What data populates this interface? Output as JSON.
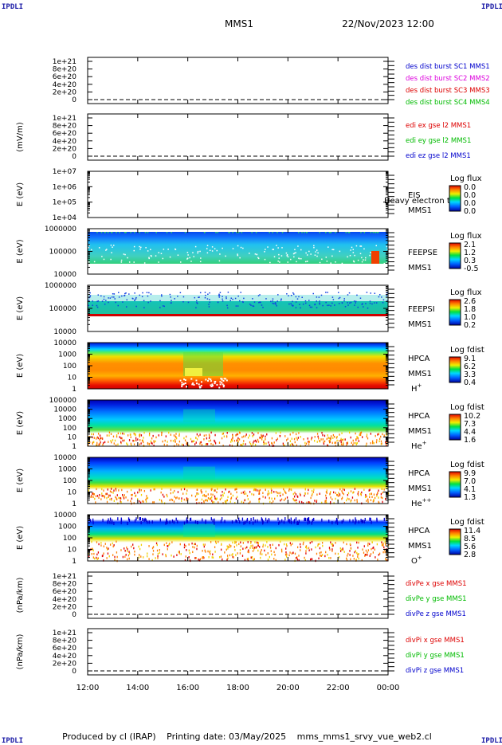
{
  "header": {
    "title": "MMS1",
    "datetime": "22/Nov/2023 12:00"
  },
  "corners": {
    "label": "IPDLI"
  },
  "footer": {
    "produced": "Produced by cl (IRAP)",
    "printing": "Printing date: 03/May/2025",
    "script": "mms_mms1_srvy_vue_web2.cl"
  },
  "x_axis": {
    "ticks": [
      "12:00",
      "14:00",
      "16:00",
      "18:00",
      "20:00",
      "22:00",
      "00:00"
    ]
  },
  "chart_data": [
    {
      "type": "line",
      "ylabel": "",
      "yticks": [
        "1e+21",
        "8e+20",
        "6e+20",
        "4e+20",
        "2e+20",
        "0"
      ],
      "legend": [
        {
          "text": "des dist burst SC1 MMS1",
          "color": "#0000cc"
        },
        {
          "text": "des dist burst SC2 MMS2",
          "color": "#dd00dd"
        },
        {
          "text": "des dist burst SC3 MMS3",
          "color": "#dd0000"
        },
        {
          "text": "des dist burst SC4 MMS4",
          "color": "#00bb00"
        }
      ],
      "series": []
    },
    {
      "type": "line",
      "ylabel": "(mV/m)",
      "yticks": [
        "1e+21",
        "8e+20",
        "6e+20",
        "4e+20",
        "2e+20",
        "0"
      ],
      "legend": [
        {
          "text": "edi ex gse l2 MMS1",
          "color": "#dd0000"
        },
        {
          "text": "edi ey gse l2 MMS1",
          "color": "#00bb00"
        },
        {
          "text": "edi ez gse l2 MMS1",
          "color": "#0000cc"
        }
      ],
      "series": []
    },
    {
      "type": "heatmap",
      "ylabel": "E (eV)",
      "yticks": [
        "1e+07",
        "1e+06",
        "1e+05",
        "1e+04"
      ],
      "instrument": [
        "EIS",
        "MMS1"
      ],
      "overlay_text": "Heavy electron to",
      "colorbar": {
        "title": "Log flux",
        "ticks": [
          "0.0",
          "0.0",
          "0.0",
          "0.0"
        ]
      }
    },
    {
      "type": "heatmap",
      "ylabel": "E (eV)",
      "yticks": [
        "1000000",
        "100000",
        "10000"
      ],
      "instrument": [
        "FEEPSE",
        "MMS1"
      ],
      "colorbar": {
        "title": "Log flux",
        "ticks": [
          "2.1",
          "1.2",
          "0.3",
          "-0.5"
        ]
      }
    },
    {
      "type": "heatmap",
      "ylabel": "E (eV)",
      "yticks": [
        "1000000",
        "100000",
        "10000"
      ],
      "instrument": [
        "FEEPSI",
        "MMS1"
      ],
      "colorbar": {
        "title": "Log flux",
        "ticks": [
          "2.6",
          "1.8",
          "1.0",
          "0.2"
        ]
      }
    },
    {
      "type": "heatmap",
      "ylabel": "E (eV)",
      "yticks": [
        "10000",
        "1000",
        "100",
        "10",
        "1"
      ],
      "instrument": [
        "HPCA",
        "MMS1"
      ],
      "species": "H",
      "charge": "+",
      "colorbar": {
        "title": "Log fdist",
        "ticks": [
          "9.1",
          "6.2",
          "3.3",
          "0.4"
        ]
      }
    },
    {
      "type": "heatmap",
      "ylabel": "E (eV)",
      "yticks": [
        "100000",
        "10000",
        "1000",
        "100",
        "10",
        "1"
      ],
      "instrument": [
        "HPCA",
        "MMS1"
      ],
      "species": "He",
      "charge": "+",
      "colorbar": {
        "title": "Log fdist",
        "ticks": [
          "10.2",
          "7.3",
          "4.4",
          "1.6"
        ]
      }
    },
    {
      "type": "heatmap",
      "ylabel": "E (eV)",
      "yticks": [
        "10000",
        "1000",
        "100",
        "10",
        "1"
      ],
      "instrument": [
        "HPCA",
        "MMS1"
      ],
      "species": "He",
      "charge": "++",
      "colorbar": {
        "title": "Log fdist",
        "ticks": [
          "9.9",
          "7.0",
          "4.1",
          "1.3"
        ]
      }
    },
    {
      "type": "heatmap",
      "ylabel": "E (eV)",
      "yticks": [
        "10000",
        "1000",
        "100",
        "10",
        "1"
      ],
      "instrument": [
        "HPCA",
        "MMS1"
      ],
      "species": "O",
      "charge": "+",
      "colorbar": {
        "title": "Log fdist",
        "ticks": [
          "11.4",
          "8.5",
          "5.6",
          "2.8"
        ]
      }
    },
    {
      "type": "line",
      "ylabel": "(nPa/km)",
      "yticks": [
        "1e+21",
        "8e+20",
        "6e+20",
        "4e+20",
        "2e+20",
        "0"
      ],
      "legend": [
        {
          "text": "divPe x gse MMS1",
          "color": "#dd0000"
        },
        {
          "text": "divPe y gse MMS1",
          "color": "#00bb00"
        },
        {
          "text": "divPe z gse MMS1",
          "color": "#0000cc"
        }
      ],
      "series": []
    },
    {
      "type": "line",
      "ylabel": "(nPa/km)",
      "yticks": [
        "1e+21",
        "8e+20",
        "6e+20",
        "4e+20",
        "2e+20",
        "0"
      ],
      "legend": [
        {
          "text": "divPi x gse MMS1",
          "color": "#dd0000"
        },
        {
          "text": "divPi y gse MMS1",
          "color": "#00bb00"
        },
        {
          "text": "divPi z gse MMS1",
          "color": "#0000cc"
        }
      ],
      "series": []
    }
  ]
}
